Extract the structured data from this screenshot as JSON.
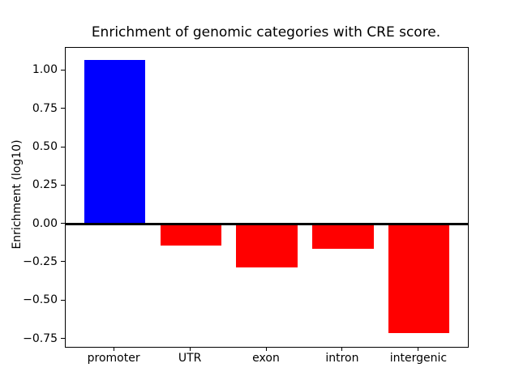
{
  "chart_data": {
    "type": "bar",
    "title": "Enrichment of genomic categories with CRE score.",
    "xlabel": "",
    "ylabel": "Enrichment (log10)",
    "categories": [
      "promoter",
      "UTR",
      "exon",
      "intron",
      "intergenic"
    ],
    "values": [
      1.07,
      -0.14,
      -0.28,
      -0.16,
      -0.71
    ],
    "bar_colors": [
      "#0000ff",
      "#ff0000",
      "#ff0000",
      "#ff0000",
      "#ff0000"
    ],
    "positive_color": "#0000ff",
    "negative_color": "#ff0000",
    "bar_width": 0.8,
    "xlim": [
      -0.64,
      4.64
    ],
    "ylim": [
      -0.8,
      1.15
    ],
    "yticks": [
      1.0,
      0.75,
      0.5,
      0.25,
      0.0,
      -0.25,
      -0.5,
      -0.75
    ],
    "ytick_labels": [
      "1.00",
      "0.75",
      "0.50",
      "0.25",
      "0.00",
      "−0.25",
      "−0.50",
      "−0.75"
    ],
    "zero_line": true,
    "grid": false,
    "legend": null,
    "axis_color": "#000000",
    "background_color": "#ffffff"
  }
}
